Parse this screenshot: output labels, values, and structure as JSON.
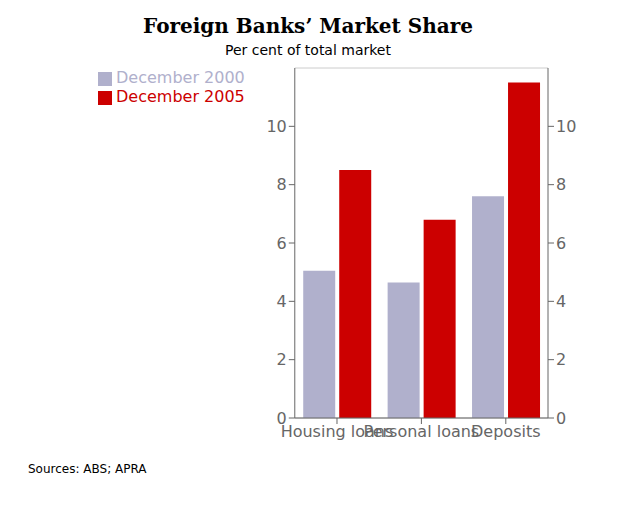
{
  "chart_data": {
    "type": "bar",
    "title": "Foreign Banks’ Market Share",
    "subtitle": "Per cent of total market",
    "annotation": "Sources: ABS; APRA",
    "categories": [
      "Housing loans",
      "Personal loans",
      "Deposits"
    ],
    "series": [
      {
        "name": "December 2000",
        "color": "#b0b0cc",
        "values": [
          5.05,
          4.65,
          7.6
        ]
      },
      {
        "name": "December 2005",
        "color": "#cc0000",
        "values": [
          8.5,
          6.8,
          11.5
        ]
      }
    ],
    "ylabel": "%",
    "y2label": "%",
    "ylim": [
      0,
      12
    ],
    "yticks": [
      0,
      2,
      4,
      6,
      8,
      10
    ],
    "y2lim": [
      0,
      12
    ],
    "y2ticks": [
      0,
      2,
      4,
      6,
      8,
      10
    ],
    "grid": true,
    "legend": "upper left"
  }
}
